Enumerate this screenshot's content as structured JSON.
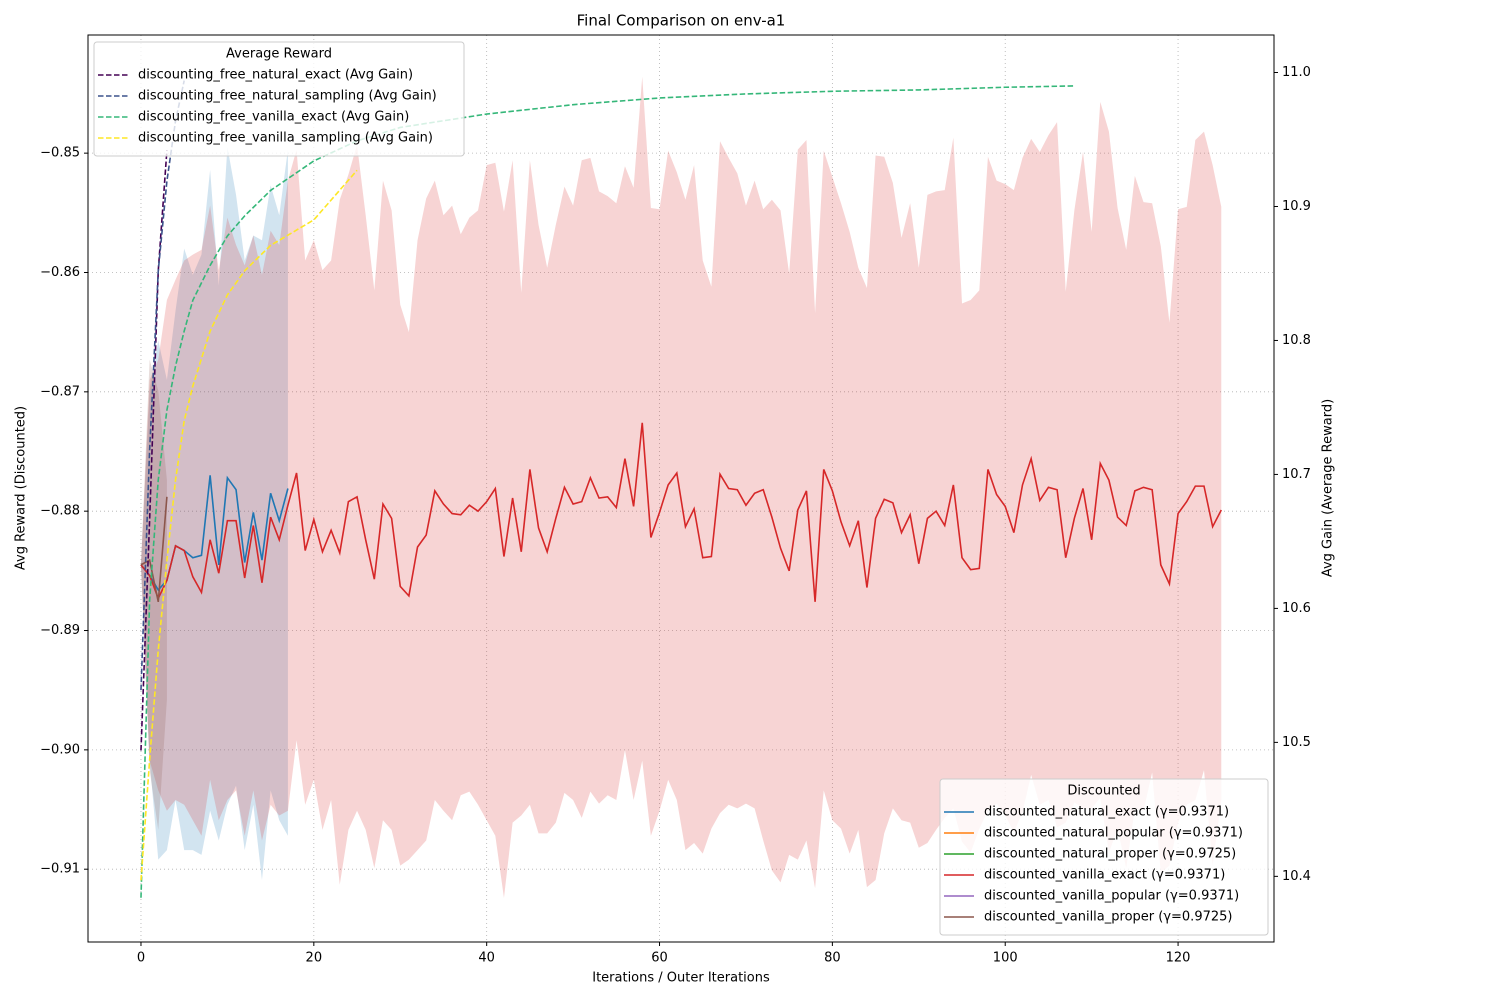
{
  "chart_data": {
    "type": "line",
    "title": "Final Comparison on env-a1",
    "xlabel": "Iterations / Outer Iterations",
    "ylabel": "Avg Reward (Discounted)",
    "y2label": "Avg Gain (Average Reward)",
    "xlim": [
      -6.13,
      131.1
    ],
    "ylim": [
      -0.9161,
      -0.8401
    ],
    "y2lim": [
      10.351,
      11.028
    ],
    "xticks": [
      0,
      20,
      40,
      60,
      80,
      100,
      120
    ],
    "yticks": [
      {
        "value": -0.91,
        "label": "−0.91"
      },
      {
        "value": -0.9,
        "label": "−0.90"
      },
      {
        "value": -0.89,
        "label": "−0.89"
      },
      {
        "value": -0.88,
        "label": "−0.88"
      },
      {
        "value": -0.87,
        "label": "−0.87"
      },
      {
        "value": -0.86,
        "label": "−0.86"
      },
      {
        "value": -0.85,
        "label": "−0.85"
      }
    ],
    "y2ticks": [
      10.4,
      10.5,
      10.6,
      10.7,
      10.8,
      10.9,
      {
        "value": 11,
        "label": "11.0"
      }
    ],
    "grid": true,
    "legend_title": "Discounted",
    "legend_loc": "lower right",
    "y2_legend_title": "Average Reward",
    "y2_legend_loc": "upper left",
    "series": [
      {
        "name": "discounted_natural_exact (γ=0.9371)",
        "color": "#1f77b4",
        "x": [
          0,
          1,
          2,
          3,
          4,
          5,
          6,
          7,
          8,
          9,
          10,
          11,
          12,
          13,
          14,
          15,
          16,
          17
        ],
        "values": [
          -0.8845,
          -0.8854,
          -0.8866,
          -0.8858,
          -0.8829,
          -0.8833,
          -0.8839,
          -0.8837,
          -0.877,
          -0.8845,
          -0.8772,
          -0.8782,
          -0.8843,
          -0.8801,
          -0.8841,
          -0.8785,
          -0.8808,
          -0.8781
        ],
        "band_upper": [
          -0.8845,
          -0.8699,
          -0.8657,
          -0.869,
          -0.8632,
          -0.858,
          -0.8602,
          -0.8585,
          -0.8514,
          -0.8611,
          -0.8495,
          -0.8535,
          -0.859,
          -0.8569,
          -0.8573,
          -0.8527,
          -0.8552,
          -0.8497
        ],
        "band_lower": [
          -0.8845,
          -0.9009,
          -0.9092,
          -0.9084,
          -0.9042,
          -0.9084,
          -0.9084,
          -0.9088,
          -0.9051,
          -0.9076,
          -0.9046,
          -0.903,
          -0.9084,
          -0.9046,
          -0.9109,
          -0.9034,
          -0.9059,
          -0.9072
        ]
      },
      {
        "name": "discounted_natural_popular (γ=0.9371)",
        "color": "#ff7f0e",
        "x": [],
        "values": []
      },
      {
        "name": "discounted_natural_proper (γ=0.9725)",
        "color": "#2ca02c",
        "x": [],
        "values": []
      },
      {
        "name": "discounted_vanilla_exact (γ=0.9371)",
        "color": "#d62728",
        "x": [
          0,
          1,
          2,
          3,
          4,
          5,
          6,
          7,
          8,
          9,
          10,
          11,
          12,
          13,
          14,
          15,
          16,
          17,
          18,
          19,
          20,
          21,
          22,
          23,
          24,
          25,
          26,
          27,
          28,
          29,
          30,
          31,
          32,
          33,
          34,
          35,
          36,
          37,
          38,
          39,
          40,
          41,
          42,
          43,
          44,
          45,
          46,
          47,
          48,
          49,
          50,
          51,
          52,
          53,
          54,
          55,
          56,
          57,
          58,
          59,
          60,
          61,
          62,
          63,
          64,
          65,
          66,
          67,
          68,
          69,
          70,
          71,
          72,
          73,
          74,
          75,
          76,
          77,
          78,
          79,
          80,
          81,
          82,
          83,
          84,
          85,
          86,
          87,
          88,
          89,
          90,
          91,
          92,
          93,
          94,
          95,
          96,
          97,
          98,
          99,
          100,
          101,
          102,
          103,
          104,
          105,
          106,
          107,
          108,
          109,
          110,
          111,
          112,
          113,
          114,
          115,
          116,
          117,
          118,
          119,
          120,
          121,
          122,
          123,
          124,
          125
        ],
        "values": [
          -0.8845,
          -0.8854,
          -0.8873,
          -0.8858,
          -0.8829,
          -0.8833,
          -0.8855,
          -0.8868,
          -0.8824,
          -0.8852,
          -0.8808,
          -0.8808,
          -0.8856,
          -0.8812,
          -0.886,
          -0.8805,
          -0.8824,
          -0.8795,
          -0.8768,
          -0.8833,
          -0.8807,
          -0.8834,
          -0.8816,
          -0.8835,
          -0.8792,
          -0.8788,
          -0.8824,
          -0.8857,
          -0.8794,
          -0.8806,
          -0.8863,
          -0.8871,
          -0.883,
          -0.882,
          -0.8783,
          -0.8794,
          -0.8802,
          -0.8803,
          -0.8795,
          -0.88,
          -0.8792,
          -0.8781,
          -0.8838,
          -0.8789,
          -0.8834,
          -0.8765,
          -0.8814,
          -0.8834,
          -0.8806,
          -0.878,
          -0.8794,
          -0.8792,
          -0.8772,
          -0.8789,
          -0.8788,
          -0.8797,
          -0.8756,
          -0.8796,
          -0.8726,
          -0.8822,
          -0.8801,
          -0.8778,
          -0.8768,
          -0.8813,
          -0.8798,
          -0.8839,
          -0.8838,
          -0.8769,
          -0.8781,
          -0.8782,
          -0.8795,
          -0.8785,
          -0.8782,
          -0.8805,
          -0.8831,
          -0.885,
          -0.8799,
          -0.8783,
          -0.8876,
          -0.8765,
          -0.8783,
          -0.8809,
          -0.8829,
          -0.8808,
          -0.8864,
          -0.8806,
          -0.879,
          -0.8793,
          -0.8818,
          -0.8803,
          -0.8844,
          -0.8806,
          -0.88,
          -0.8812,
          -0.8778,
          -0.8839,
          -0.8849,
          -0.8848,
          -0.8765,
          -0.8786,
          -0.8796,
          -0.8818,
          -0.8778,
          -0.8756,
          -0.8791,
          -0.878,
          -0.8782,
          -0.8839,
          -0.8806,
          -0.8781,
          -0.8824,
          -0.876,
          -0.8774,
          -0.8805,
          -0.8812,
          -0.8783,
          -0.878,
          -0.8782,
          -0.8845,
          -0.8861,
          -0.8802,
          -0.8792,
          -0.8779,
          -0.8779,
          -0.8813,
          -0.8799
        ],
        "band_upper": [
          -0.8845,
          -0.869,
          -0.8673,
          -0.8623,
          -0.8606,
          -0.859,
          -0.8585,
          -0.8581,
          -0.8544,
          -0.8598,
          -0.8554,
          -0.8577,
          -0.8594,
          -0.8569,
          -0.8602,
          -0.8565,
          -0.8577,
          -0.8523,
          -0.8497,
          -0.859,
          -0.8573,
          -0.8598,
          -0.859,
          -0.8539,
          -0.8518,
          -0.8493,
          -0.8552,
          -0.8615,
          -0.8523,
          -0.8548,
          -0.8627,
          -0.865,
          -0.8573,
          -0.8538,
          -0.8523,
          -0.8552,
          -0.8544,
          -0.8568,
          -0.8554,
          -0.8548,
          -0.851,
          -0.8508,
          -0.8549,
          -0.8506,
          -0.8617,
          -0.8506,
          -0.856,
          -0.8596,
          -0.856,
          -0.8528,
          -0.8544,
          -0.8506,
          -0.8504,
          -0.8532,
          -0.8536,
          -0.8542,
          -0.8511,
          -0.8529,
          -0.8436,
          -0.8546,
          -0.8547,
          -0.8498,
          -0.8516,
          -0.8539,
          -0.851,
          -0.859,
          -0.8612,
          -0.849,
          -0.8504,
          -0.8517,
          -0.8544,
          -0.8523,
          -0.8547,
          -0.8539,
          -0.8548,
          -0.8601,
          -0.8497,
          -0.8489,
          -0.8634,
          -0.8498,
          -0.852,
          -0.8542,
          -0.8566,
          -0.8596,
          -0.8613,
          -0.8502,
          -0.8503,
          -0.8525,
          -0.8571,
          -0.8542,
          -0.8596,
          -0.8535,
          -0.8532,
          -0.8531,
          -0.8487,
          -0.8626,
          -0.8623,
          -0.8615,
          -0.8503,
          -0.8523,
          -0.8526,
          -0.8531,
          -0.8504,
          -0.8488,
          -0.8499,
          -0.8485,
          -0.8474,
          -0.8616,
          -0.8548,
          -0.8499,
          -0.8566,
          -0.8457,
          -0.8482,
          -0.8546,
          -0.8581,
          -0.8519,
          -0.8541,
          -0.8542,
          -0.8578,
          -0.8642,
          -0.8547,
          -0.8545,
          -0.8489,
          -0.8482,
          -0.851,
          -0.8545
        ],
        "band_lower": [
          -0.8845,
          -0.9009,
          -0.9034,
          -0.9051,
          -0.9042,
          -0.9046,
          -0.9059,
          -0.9072,
          -0.9025,
          -0.9059,
          -0.9042,
          -0.9034,
          -0.9072,
          -0.9034,
          -0.9076,
          -0.9046,
          -0.9055,
          -0.9051,
          -0.8992,
          -0.9046,
          -0.9025,
          -0.9067,
          -0.9042,
          -0.9113,
          -0.9067,
          -0.9051,
          -0.9067,
          -0.9099,
          -0.9059,
          -0.9067,
          -0.9097,
          -0.9092,
          -0.9084,
          -0.9076,
          -0.9042,
          -0.9051,
          -0.9059,
          -0.9038,
          -0.9035,
          -0.9046,
          -0.9059,
          -0.9072,
          -0.9124,
          -0.9061,
          -0.9055,
          -0.9046,
          -0.907,
          -0.907,
          -0.9061,
          -0.9036,
          -0.9042,
          -0.9057,
          -0.9035,
          -0.9045,
          -0.9038,
          -0.9042,
          -0.9,
          -0.9042,
          -0.9009,
          -0.9072,
          -0.9051,
          -0.9025,
          -0.9042,
          -0.9084,
          -0.9078,
          -0.9087,
          -0.9066,
          -0.9053,
          -0.9046,
          -0.9049,
          -0.9045,
          -0.9049,
          -0.9076,
          -0.9101,
          -0.9111,
          -0.9088,
          -0.9092,
          -0.9076,
          -0.9116,
          -0.9034,
          -0.9059,
          -0.9066,
          -0.9087,
          -0.9067,
          -0.9115,
          -0.9109,
          -0.907,
          -0.9049,
          -0.9059,
          -0.9061,
          -0.9082,
          -0.9078,
          -0.9067,
          -0.9057,
          -0.9049,
          -0.9077,
          -0.9086,
          -0.9066,
          -0.9051,
          -0.9045,
          -0.9055,
          -0.9069,
          -0.9052,
          -0.9021,
          -0.9046,
          -0.9042,
          -0.9065,
          -0.9061,
          -0.9044,
          -0.9049,
          -0.9049,
          -0.904,
          -0.9086,
          -0.9066,
          -0.9099,
          -0.9049,
          -0.9051,
          -0.9019,
          -0.9103,
          -0.9097,
          -0.9061,
          -0.9046,
          -0.9042,
          -0.9017,
          -0.9097,
          -0.9042
        ]
      },
      {
        "name": "discounted_vanilla_popular (γ=0.9371)",
        "color": "#9467bd",
        "x": [],
        "values": []
      },
      {
        "name": "discounted_vanilla_proper (γ=0.9725)",
        "color": "#8c564b",
        "x": [
          0,
          1,
          2,
          3
        ],
        "values": [
          -0.8845,
          -0.8841,
          -0.8876,
          -0.8788
        ],
        "band_upper": [
          -0.8845,
          -0.8673,
          -0.8699,
          -0.8774
        ],
        "band_lower": [
          -0.8845,
          -0.9017,
          -0.9067,
          -0.8958
        ]
      },
      {
        "name": "discounting_free_natural_exact (Avg Gain)",
        "color": "#440154",
        "axis": "y2",
        "linestyle": "dashed",
        "x": [
          0,
          1,
          2,
          3
        ],
        "values": [
          10.494,
          10.666,
          10.852,
          10.942
        ]
      },
      {
        "name": "discounting_free_natural_sampling (Avg Gain)",
        "color": "#3b528b",
        "axis": "y2",
        "linestyle": "dashed",
        "x": [
          0,
          1,
          2,
          3,
          4,
          5
        ],
        "values": [
          10.539,
          10.718,
          10.852,
          10.919,
          10.964,
          10.994
        ]
      },
      {
        "name": "discounting_free_vanilla_exact (Avg Gain)",
        "color": "#35b779",
        "axis": "y2",
        "linestyle": "dashed",
        "x": [
          0,
          1,
          2,
          3,
          4,
          5,
          6,
          8,
          10,
          12,
          15,
          20,
          25,
          30,
          40,
          50,
          60,
          70,
          80,
          90,
          100,
          108
        ],
        "values": [
          10.384,
          10.606,
          10.696,
          10.748,
          10.781,
          10.807,
          10.83,
          10.856,
          10.878,
          10.893,
          10.912,
          10.934,
          10.949,
          10.959,
          10.969,
          10.976,
          10.981,
          10.984,
          10.986,
          10.987,
          10.989,
          10.99
        ]
      },
      {
        "name": "discounting_free_vanilla_sampling (Avg Gain)",
        "color": "#fde725",
        "axis": "y2",
        "linestyle": "dashed",
        "x": [
          0,
          1,
          2,
          3,
          4,
          5,
          6,
          8,
          10,
          12,
          15,
          20,
          25
        ],
        "values": [
          10.397,
          10.487,
          10.569,
          10.636,
          10.696,
          10.74,
          10.766,
          10.807,
          10.834,
          10.852,
          10.871,
          10.89,
          10.927
        ]
      }
    ]
  }
}
